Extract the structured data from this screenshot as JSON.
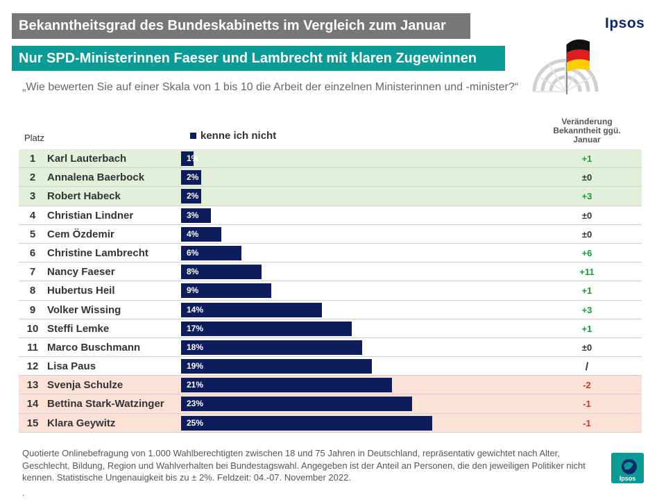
{
  "title": "Bekanntheitsgrad des Bundeskabinetts im Vergleich zum Januar",
  "subtitle": "Nur SPD-Ministerinnen Faeser und Lambrecht mit klaren Zugewinnen",
  "question": "„Wie bewerten Sie auf einer Skala von 1 bis 10 die Arbeit der einzelnen Ministerinnen und -minister?“",
  "brand": "Ipsos",
  "brand_small": "Ipsos",
  "columns": {
    "rank": "Platz",
    "change": "Veränderung Bekanntheit ggü. Januar"
  },
  "colors": {
    "bar": "#0c1c5c",
    "green_bg": "#e2f0d9",
    "red_bg": "#fbe1d6",
    "positive": "#1a9a3a",
    "negative": "#c0392b",
    "neutral": "#333333",
    "title_bg": "#777777",
    "subtitle_bg": "#0a9b97"
  },
  "chart_data": {
    "type": "bar",
    "orientation": "horizontal",
    "legend": [
      "kenne ich nicht"
    ],
    "xlim": [
      0,
      38
    ],
    "series": [
      {
        "name": "kenne ich nicht",
        "values": [
          1,
          2,
          2,
          3,
          4,
          6,
          8,
          9,
          14,
          17,
          18,
          19,
          21,
          23,
          25
        ]
      }
    ],
    "rows": [
      {
        "rank": "1",
        "name": "Karl Lauterbach",
        "value": 1,
        "label": "1%",
        "change": "+1",
        "group": "top"
      },
      {
        "rank": "2",
        "name": "Annalena Baerbock",
        "value": 2,
        "label": "2%",
        "change": "±0",
        "group": "top"
      },
      {
        "rank": "3",
        "name": "Robert Habeck",
        "value": 2,
        "label": "2%",
        "change": "+3",
        "group": "top"
      },
      {
        "rank": "4",
        "name": "Christian Lindner",
        "value": 3,
        "label": "3%",
        "change": "±0",
        "group": "mid"
      },
      {
        "rank": "5",
        "name": "Cem Özdemir",
        "value": 4,
        "label": "4%",
        "change": "±0",
        "group": "mid"
      },
      {
        "rank": "6",
        "name": "Christine Lambrecht",
        "value": 6,
        "label": "6%",
        "change": "+6",
        "group": "mid"
      },
      {
        "rank": "7",
        "name": "Nancy Faeser",
        "value": 8,
        "label": "8%",
        "change": "+11",
        "group": "mid"
      },
      {
        "rank": "8",
        "name": "Hubertus Heil",
        "value": 9,
        "label": "9%",
        "change": "+1",
        "group": "mid"
      },
      {
        "rank": "9",
        "name": "Volker Wissing",
        "value": 14,
        "label": "14%",
        "change": "+3",
        "group": "mid"
      },
      {
        "rank": "10",
        "name": "Steffi Lemke",
        "value": 17,
        "label": "17%",
        "change": "+1",
        "group": "mid"
      },
      {
        "rank": "11",
        "name": "Marco Buschmann",
        "value": 18,
        "label": "18%",
        "change": "±0",
        "group": "mid"
      },
      {
        "rank": "12",
        "name": "Lisa Paus",
        "value": 19,
        "label": "19%",
        "change": "/",
        "group": "mid"
      },
      {
        "rank": "13",
        "name": "Svenja Schulze",
        "value": 21,
        "label": "21%",
        "change": "-2",
        "group": "bottom"
      },
      {
        "rank": "14",
        "name": "Bettina Stark-Watzinger",
        "value": 23,
        "label": "23%",
        "change": "-1",
        "group": "bottom"
      },
      {
        "rank": "15",
        "name": "Klara Geywitz",
        "value": 25,
        "label": "25%",
        "change": "-1",
        "group": "bottom"
      }
    ]
  },
  "footnote": "Quotierte Onlinebefragung von 1.000 Wahlberechtigten zwischen 18 und 75 Jahren in Deutschland, repräsentativ gewichtet nach Alter, Geschlecht, Bildung, Region und Wahlverhalten bei Bundestagswahl. Angegeben ist der Anteil an Personen, die den jeweiligen Politiker nicht kennen. Statistische Ungenauigkeit bis zu ± 2%. Feldzeit: 04.-07. November 2022.",
  "footnote_dot": "."
}
